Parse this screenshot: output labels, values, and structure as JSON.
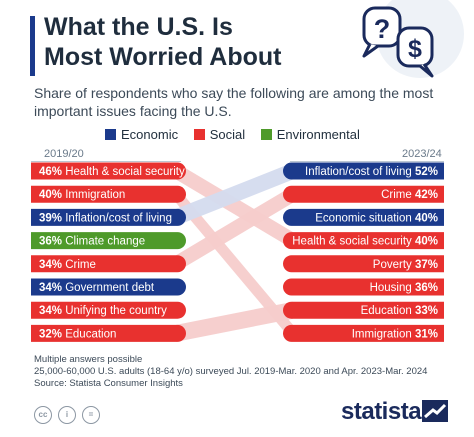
{
  "header": {
    "title_line1": "What the U.S. Is",
    "title_line2": "Most Worried About",
    "subtitle": "Share of respondents who say the following are among the most important issues facing the U.S."
  },
  "legend": [
    {
      "label": "Economic",
      "color": "#1b3a8c"
    },
    {
      "label": "Social",
      "color": "#e8312f"
    },
    {
      "label": "Environmental",
      "color": "#4e9a2a"
    }
  ],
  "icons": [
    "question-bubble-icon",
    "dollar-bubble-icon"
  ],
  "chart_data": {
    "type": "slope",
    "periods": [
      "2019/20",
      "2023/24"
    ],
    "left": [
      {
        "label": "Health & social security",
        "value": 46,
        "category": "Social"
      },
      {
        "label": "Immigration",
        "value": 40,
        "category": "Social"
      },
      {
        "label": "Inflation/cost of living",
        "value": 39,
        "category": "Economic"
      },
      {
        "label": "Climate change",
        "value": 36,
        "category": "Environmental"
      },
      {
        "label": "Crime",
        "value": 34,
        "category": "Social"
      },
      {
        "label": "Government debt",
        "value": 34,
        "category": "Economic"
      },
      {
        "label": "Unifying the country",
        "value": 34,
        "category": "Social"
      },
      {
        "label": "Education",
        "value": 32,
        "category": "Social"
      }
    ],
    "right": [
      {
        "label": "Inflation/cost of living",
        "value": 52,
        "category": "Economic"
      },
      {
        "label": "Crime",
        "value": 42,
        "category": "Social"
      },
      {
        "label": "Economic situation",
        "value": 40,
        "category": "Economic"
      },
      {
        "label": "Health & social security",
        "value": 40,
        "category": "Social"
      },
      {
        "label": "Poverty",
        "value": 37,
        "category": "Social"
      },
      {
        "label": "Housing",
        "value": 36,
        "category": "Social"
      },
      {
        "label": "Education",
        "value": 33,
        "category": "Social"
      },
      {
        "label": "Immigration",
        "value": 31,
        "category": "Social"
      }
    ]
  },
  "notes": {
    "line1": "Multiple answers possible",
    "line2": "25,000-60,000 U.S. adults (18-64 y/o) surveyed Jul. 2019-Mar. 2020 and Apr. 2023-Mar. 2024",
    "line3": "Source: Statista Consumer Insights"
  },
  "footer": {
    "license_icons": [
      "cc",
      "i",
      "="
    ],
    "brand": "statista"
  }
}
